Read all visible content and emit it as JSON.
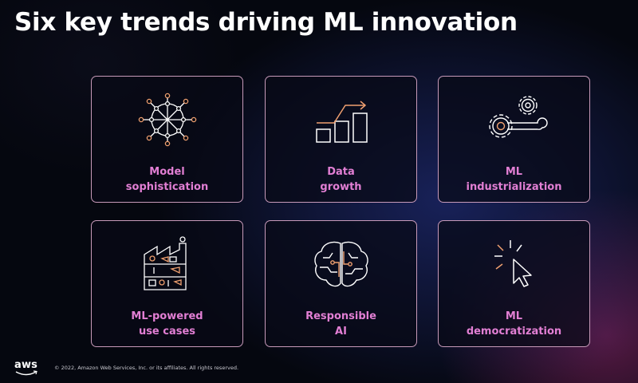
{
  "slide": {
    "title": "Six key trends driving ML innovation",
    "accent_color": "#e27fd4",
    "border_color": "#c79ab9",
    "cards": [
      {
        "icon": "neural-network-icon",
        "line1": "Model",
        "line2": "sophistication"
      },
      {
        "icon": "growth-chart-icon",
        "line1": "Data",
        "line2": "growth"
      },
      {
        "icon": "gears-wrench-icon",
        "line1": "ML",
        "line2": "industrialization"
      },
      {
        "icon": "factory-icon",
        "line1": "ML-powered",
        "line2": "use cases"
      },
      {
        "icon": "brain-circuit-icon",
        "line1": "Responsible",
        "line2": "AI"
      },
      {
        "icon": "cursor-click-icon",
        "line1": "ML",
        "line2": "democratization"
      }
    ]
  },
  "footer": {
    "logo_text": "aws",
    "copyright": "© 2022, Amazon Web Services, Inc. or its affiliates. All rights reserved."
  }
}
